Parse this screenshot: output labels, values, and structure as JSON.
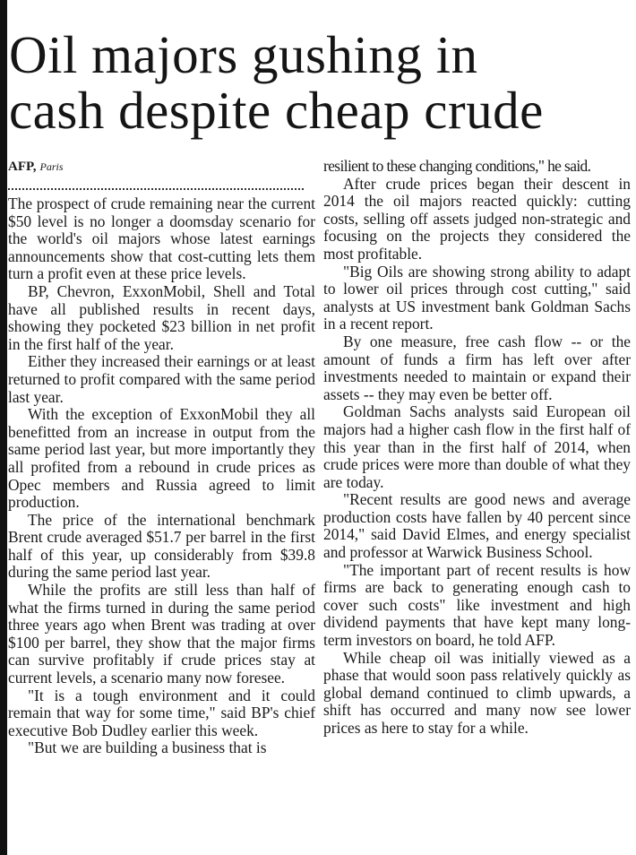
{
  "headline": [
    "Oil majors gushing in",
    "cash despite cheap crude"
  ],
  "byline": {
    "agency": "AFP,",
    "place": "Paris"
  },
  "left_column": [
    "The prospect of crude remaining near the current $50 level is no longer a doomsday scenario for the world's oil majors whose latest earnings announcements show that cost-cutting lets them turn a profit even at these price levels.",
    "BP, Chevron, ExxonMobil, Shell and Total have all published results in recent days, showing they pocketed $23 billion in net profit in the first half of the year.",
    "Either they increased their earnings or at least returned to profit compared with the same period last year.",
    "With the exception of ExxonMobil they all benefitted from an increase in output from the same period last year, but more importantly they all profited from a rebound in crude prices as Opec members and Russia agreed to limit production.",
    "The price of the international benchmark Brent crude averaged $51.7 per barrel in the first half of this year, up considerably from $39.8 during the same period last year.",
    "While the profits are still less than half of what the firms turned in during the same period three years ago when Brent was trading at over $100 per barrel, they show that the major firms can survive profitably if crude prices stay at current levels, a scenario many now foresee.",
    "\"It is a tough environment and it could remain that way for some time,\" said BP's chief executive Bob Dudley earlier this week.",
    "\"But we are building a business that is"
  ],
  "right_column": [
    "resilient to these changing conditions,\" he said.",
    "After crude prices began their descent in 2014 the oil majors reacted quickly: cutting costs, selling off assets judged non-strategic and focusing on the projects they considered the most profitable.",
    "\"Big Oils are showing strong ability to adapt to lower oil prices through cost cutting,\" said analysts at US investment bank Goldman Sachs in a recent report.",
    "By one measure, free cash flow -- or the amount of funds a firm has left over after investments needed to maintain or expand their assets -- they may even be better off.",
    "Goldman Sachs analysts said European oil majors had a higher cash flow in the first half of this year than in the first half of 2014, when crude prices were more than double of what they are today.",
    "\"Recent results are good news and average production costs have fallen by 40 percent since 2014,\" said David Elmes, and energy specialist and professor at Warwick Business School.",
    "\"The important part of recent results is how firms are back to generating enough cash to cover such costs\" like investment and high dividend payments that have kept many long-term investors on board, he told AFP.",
    "While cheap oil was initially viewed as a phase that would soon pass relatively quickly as global demand continued to climb upwards, a shift has occurred and many now see lower prices as here to stay for a while."
  ]
}
